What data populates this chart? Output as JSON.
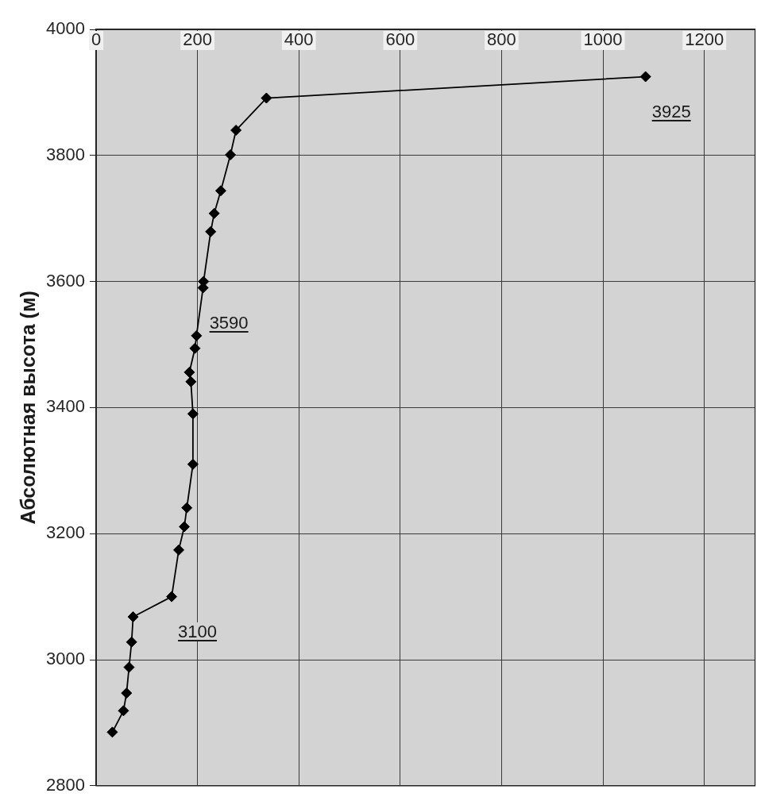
{
  "chart_data": {
    "type": "line",
    "ylabel": "Абсолютная высота (м)",
    "x": [
      32,
      54,
      60,
      65,
      70,
      73,
      149,
      163,
      174,
      179,
      191,
      191,
      187,
      184,
      195,
      198,
      211,
      212,
      226,
      233,
      246,
      265,
      276,
      336,
      1084
    ],
    "series": [
      {
        "color": "#000000",
        "values": [
          2885,
          2919,
          2947,
          2988,
          3028,
          3068,
          3100,
          3174,
          3211,
          3241,
          3310,
          3390,
          3441,
          3456,
          3494,
          3514,
          3590,
          3600,
          3679,
          3708,
          3744,
          3801,
          3840,
          3891,
          3925
        ]
      }
    ],
    "xlim": [
      0,
      1300
    ],
    "xticks": [
      0,
      200,
      400,
      600,
      800,
      1000,
      1200
    ],
    "ylim": [
      2800,
      4000
    ],
    "yticks": [
      2800,
      3000,
      3200,
      3400,
      3600,
      3800,
      4000
    ],
    "annotations": [
      {
        "text": "3925",
        "x": 1084,
        "y": 3925
      },
      {
        "text": "3590",
        "x": 211,
        "y": 3590
      },
      {
        "text": "3100",
        "x": 149,
        "y": 3100
      }
    ],
    "grid": true,
    "legend": false,
    "marker": "diamond",
    "line_style": "solid"
  }
}
